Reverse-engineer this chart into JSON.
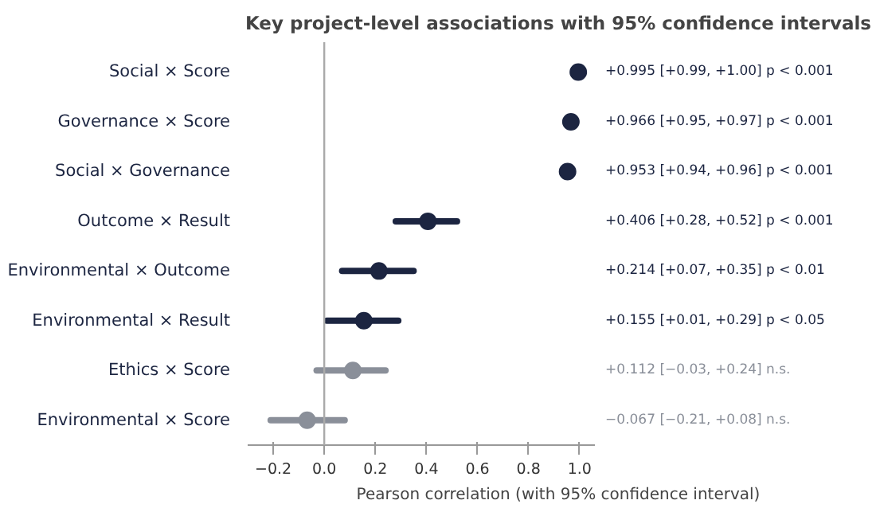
{
  "chart_data": {
    "type": "scatter",
    "orientation": "horizontal",
    "title": "Key project-level associations with 95% confidence intervals",
    "xlabel": "Pearson correlation (with 95% confidence interval)",
    "categories": [
      "Social × Score",
      "Governance × Score",
      "Social × Governance",
      "Outcome × Result",
      "Environmental × Outcome",
      "Environmental × Result",
      "Ethics × Score",
      "Environmental × Score"
    ],
    "values": [
      0.995,
      0.966,
      0.953,
      0.406,
      0.214,
      0.155,
      0.112,
      -0.067
    ],
    "errors": [
      null,
      null,
      null,
      [
        0.28,
        0.52
      ],
      [
        0.07,
        0.35
      ],
      [
        0.01,
        0.29
      ],
      [
        -0.03,
        0.24
      ],
      [
        -0.21,
        0.08
      ]
    ],
    "colors": [
      "#1c2541",
      "#1c2541",
      "#1c2541",
      "#1c2541",
      "#1c2541",
      "#1c2541",
      "#8a8f99",
      "#8a8f99"
    ],
    "annotations": [
      "+0.995  [+0.99, +1.00] p < 0.001",
      "+0.966  [+0.95, +0.97] p < 0.001",
      "+0.953  [+0.94, +0.96] p < 0.001",
      "+0.406  [+0.28, +0.52] p < 0.001",
      "+0.214  [+0.07, +0.35] p < 0.01",
      "+0.155  [+0.01, +0.29] p < 0.05",
      "+0.112  [−0.03, +0.24] n.s.",
      "−0.067  [−0.21, +0.08] n.s."
    ],
    "xlim": [
      -0.3,
      1.06
    ],
    "xticks": [
      {
        "value": -0.2,
        "label": "−0.2"
      },
      {
        "value": 0,
        "label": "0.0"
      },
      {
        "value": 0.2,
        "label": "0.2"
      },
      {
        "value": 0.4,
        "label": "0.4"
      },
      {
        "value": 0.6,
        "label": "0.6"
      },
      {
        "value": 0.8,
        "label": "0.8"
      },
      {
        "value": 1,
        "label": "1.0"
      }
    ],
    "ref_lines": [
      {
        "axis": "x",
        "value": 0,
        "color": "#aaaaaa"
      }
    ],
    "marker": "circle",
    "grid": false
  }
}
